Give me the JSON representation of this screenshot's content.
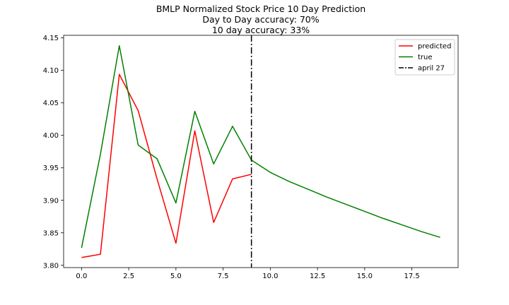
{
  "chart_data": {
    "type": "line",
    "title_lines": [
      "BMLP Normalized Stock Price 10 Day Prediction",
      "Day to Day accuracy: 70%",
      "10 day accuracy: 33%"
    ],
    "xlabel": "",
    "ylabel": "",
    "xlim": [
      -0.95,
      19.95
    ],
    "ylim": [
      3.7965,
      4.154
    ],
    "xticks": [
      0.0,
      2.5,
      5.0,
      7.5,
      10.0,
      12.5,
      15.0,
      17.5
    ],
    "xtick_labels": [
      "0.0",
      "2.5",
      "5.0",
      "7.5",
      "10.0",
      "12.5",
      "15.0",
      "17.5"
    ],
    "yticks": [
      3.8,
      3.85,
      3.9,
      3.95,
      4.0,
      4.05,
      4.1,
      4.15
    ],
    "ytick_labels": [
      "3.80",
      "3.85",
      "3.90",
      "3.95",
      "4.00",
      "4.05",
      "4.10",
      "4.15"
    ],
    "grid": false,
    "legend_position": "top-right",
    "series": [
      {
        "name": "predicted",
        "color": "#ff0000",
        "x": [
          0,
          1,
          2,
          3,
          4,
          5,
          6,
          7,
          8,
          9
        ],
        "values": [
          3.812,
          3.817,
          4.094,
          4.038,
          3.933,
          3.834,
          4.007,
          3.866,
          3.933,
          3.94
        ]
      },
      {
        "name": "true",
        "color": "#008000",
        "x": [
          0,
          1,
          2,
          3,
          4,
          5,
          6,
          7,
          8,
          9,
          10,
          11,
          12,
          13,
          14,
          15,
          16,
          17,
          18,
          19
        ],
        "values": [
          3.827,
          3.971,
          4.138,
          3.985,
          3.964,
          3.896,
          4.037,
          3.956,
          4.014,
          3.962,
          3.943,
          3.929,
          3.917,
          3.905,
          3.894,
          3.883,
          3.872,
          3.862,
          3.852,
          3.843
        ]
      }
    ],
    "vline": {
      "name": "april 27",
      "x": 9,
      "color": "#000000",
      "style": "dashdot"
    }
  }
}
